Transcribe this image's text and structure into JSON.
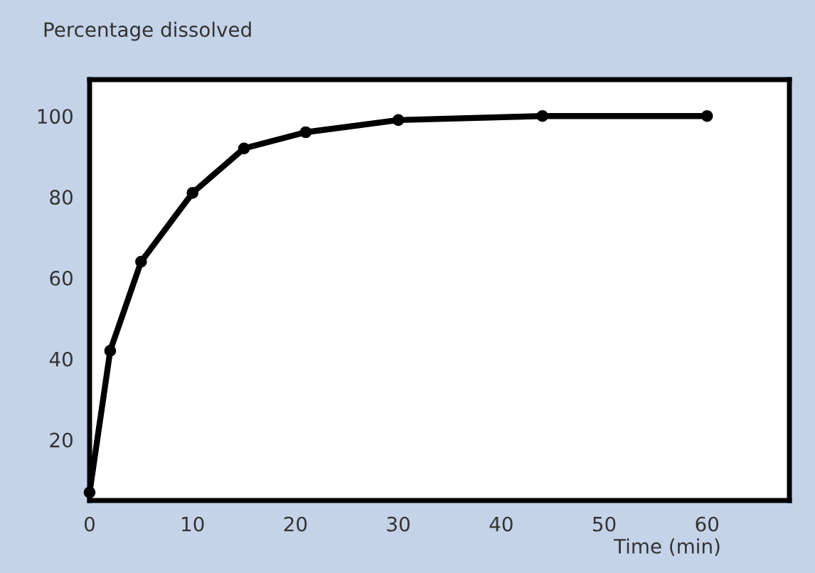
{
  "chart_data": {
    "type": "line",
    "ylabel": "Percentage dissolved",
    "xlabel": "Time (min)",
    "x": [
      0,
      2,
      5,
      10,
      15,
      21,
      30,
      44,
      60
    ],
    "series": [
      {
        "color": "#000000",
        "values": [
          7,
          42,
          64,
          81,
          92,
          96,
          99,
          100,
          100
        ]
      }
    ],
    "xlim": [
      0,
      68
    ],
    "ylim": [
      5,
      109
    ],
    "xticks": [
      0,
      10,
      20,
      30,
      40,
      50,
      60
    ],
    "yticks": [
      20,
      40,
      60,
      80,
      100
    ],
    "marker": "circle",
    "line_style": "solid",
    "grid": false,
    "legend": false
  }
}
